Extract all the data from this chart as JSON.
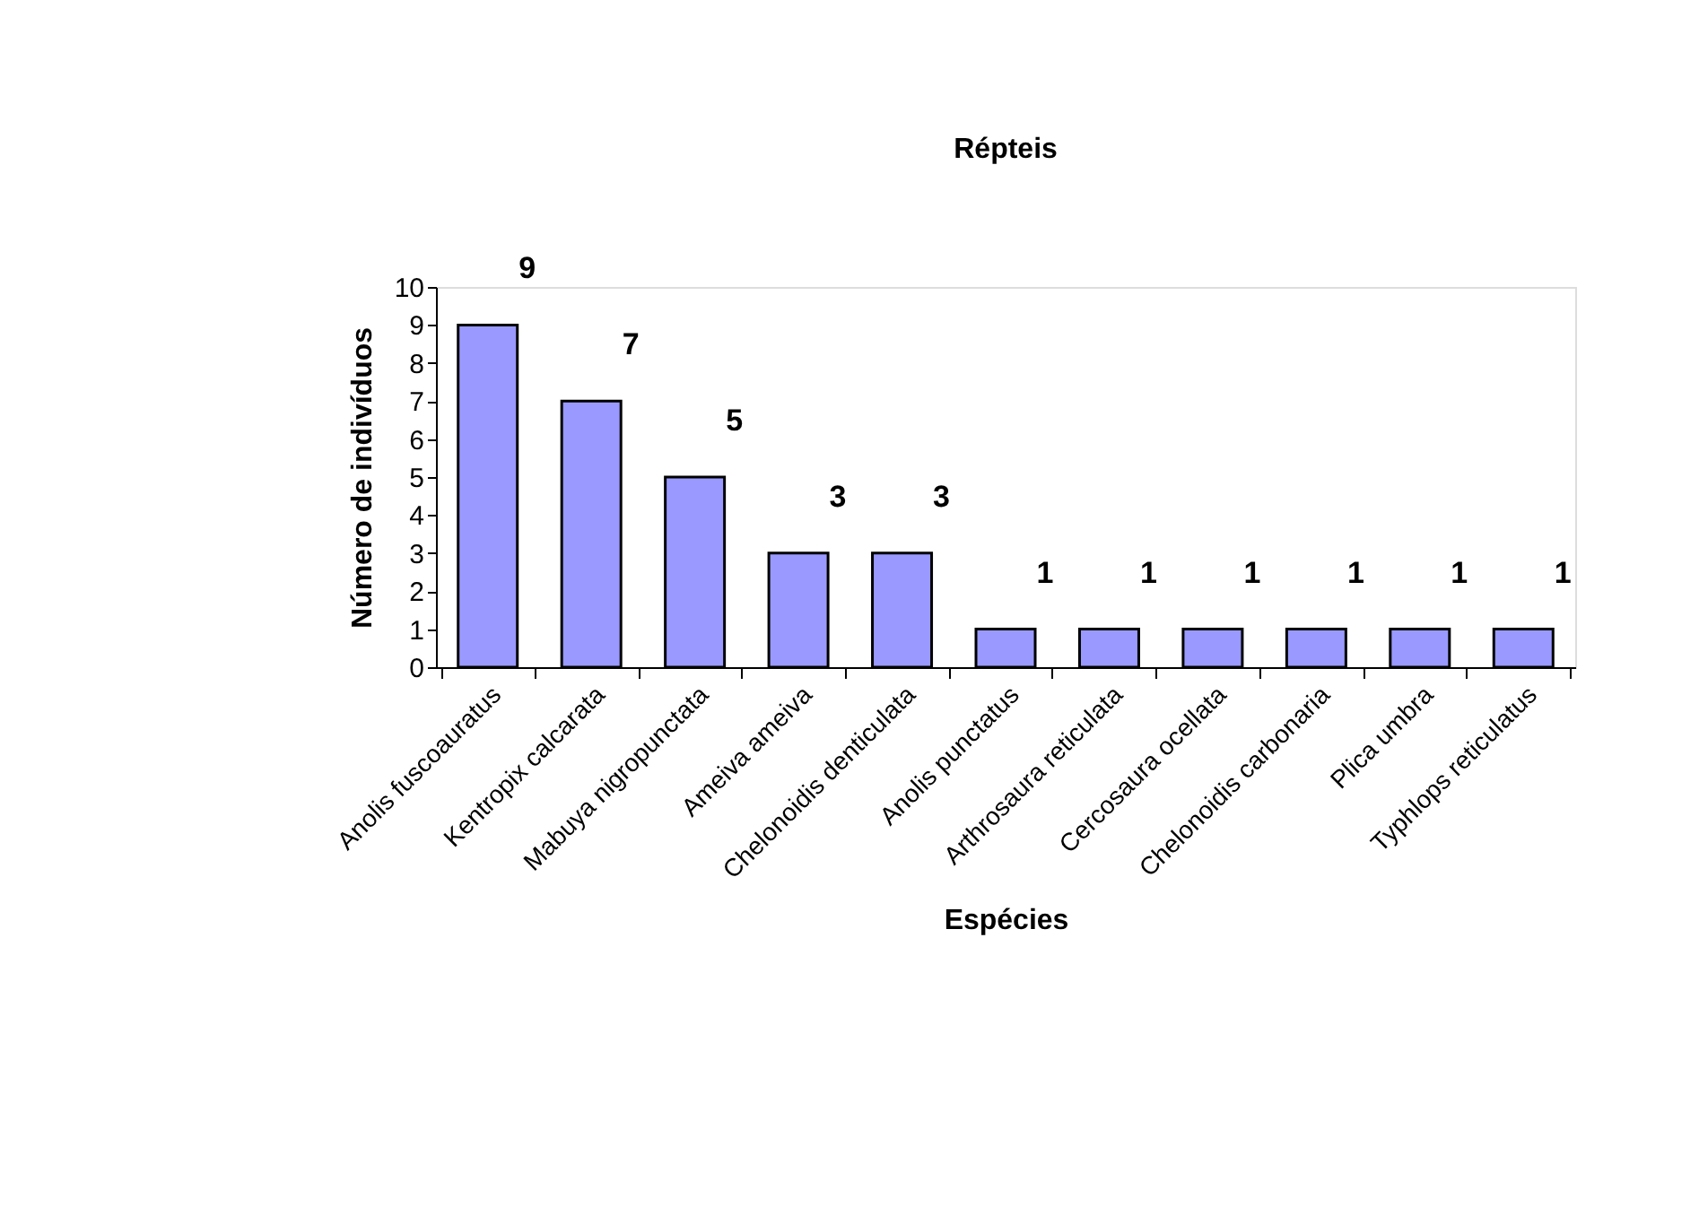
{
  "chart_data": {
    "type": "bar",
    "title": "Répteis",
    "xlabel": "Espécies",
    "ylabel": "Número de indivíduos",
    "categories": [
      "Anolis fuscoauratus",
      "Kentropix calcarata",
      "Mabuya nigropunctata",
      "Ameiva ameiva",
      "Chelonoidis denticulata",
      "Anolis punctatus",
      "Arthrosaura reticulata",
      "Cercosaura ocellata",
      "Chelonoidis carbonaria",
      "Plica umbra",
      "Typhlops reticulatus"
    ],
    "values": [
      9,
      7,
      5,
      3,
      3,
      1,
      1,
      1,
      1,
      1,
      1
    ],
    "color": "#9999ff",
    "ylim": [
      0,
      10
    ],
    "yticks": [
      0,
      1,
      2,
      3,
      4,
      5,
      6,
      7,
      8,
      9,
      10
    ],
    "grid": false,
    "data_labels": true
  }
}
